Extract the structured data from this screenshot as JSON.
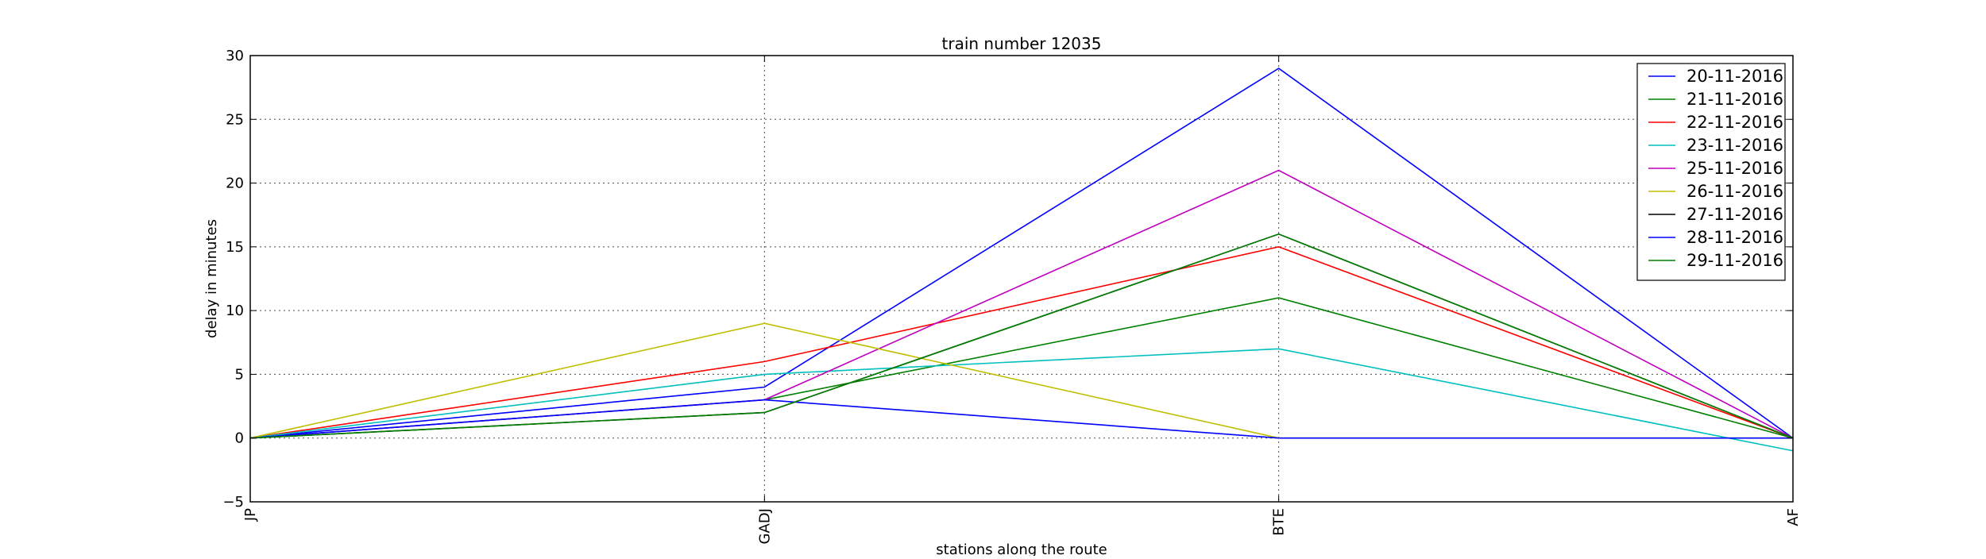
{
  "chart_data": {
    "type": "line",
    "title": "train number 12035",
    "xlabel": "stations along the route",
    "ylabel": "delay in minutes",
    "categories": [
      "JP",
      "GADJ",
      "BTE",
      "AF"
    ],
    "ylim": [
      -5,
      30
    ],
    "yticks": [
      -5,
      0,
      5,
      10,
      15,
      20,
      25,
      30
    ],
    "grid": true,
    "legend_position": "top-right",
    "series": [
      {
        "name": "20-11-2016",
        "color": "#0000ff",
        "values": [
          0,
          4,
          29,
          0
        ]
      },
      {
        "name": "21-11-2016",
        "color": "#008000",
        "values": [
          0,
          3,
          11,
          0
        ]
      },
      {
        "name": "22-11-2016",
        "color": "#ff0000",
        "values": [
          0,
          6,
          15,
          0
        ]
      },
      {
        "name": "23-11-2016",
        "color": "#00bfbf",
        "values": [
          0,
          5,
          7,
          -1
        ]
      },
      {
        "name": "25-11-2016",
        "color": "#bf00bf",
        "values": [
          0,
          3,
          21,
          0
        ]
      },
      {
        "name": "26-11-2016",
        "color": "#bfbf00",
        "values": [
          0,
          9,
          0,
          0
        ]
      },
      {
        "name": "27-11-2016",
        "color": "#000000",
        "values": [
          0,
          2,
          16,
          0
        ]
      },
      {
        "name": "28-11-2016",
        "color": "#0000ff",
        "values": [
          0,
          3,
          0,
          0
        ]
      },
      {
        "name": "29-11-2016",
        "color": "#008000",
        "values": [
          0,
          2,
          16,
          0
        ]
      }
    ]
  }
}
